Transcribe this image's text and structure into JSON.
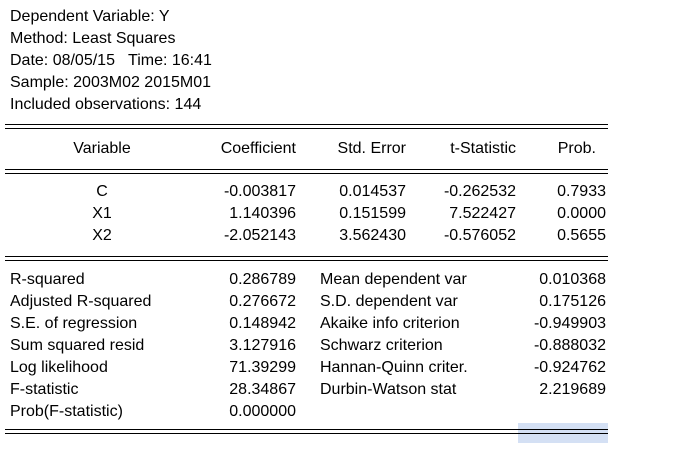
{
  "header": {
    "dependent": "Dependent Variable: Y",
    "method": "Method: Least Squares",
    "datetime": "Date: 08/05/15   Time: 16:41",
    "sample": "Sample: 2003M02 2015M01",
    "observations": "Included observations: 144"
  },
  "columns": {
    "variable": "Variable",
    "coefficient": "Coefficient",
    "std_error": "Std. Error",
    "t_statistic": "t-Statistic",
    "prob": "Prob."
  },
  "coefficients": [
    {
      "variable": "C",
      "coefficient": "-0.003817",
      "std_error": "0.014537",
      "t_statistic": "-0.262532",
      "prob": "0.7933"
    },
    {
      "variable": "X1",
      "coefficient": "1.140396",
      "std_error": "0.151599",
      "t_statistic": "7.522427",
      "prob": "0.0000"
    },
    {
      "variable": "X2",
      "coefficient": "-2.052143",
      "std_error": "3.562430",
      "t_statistic": "-0.576052",
      "prob": "0.5655"
    }
  ],
  "stats_left": [
    {
      "label": "R-squared",
      "value": "0.286789"
    },
    {
      "label": "Adjusted R-squared",
      "value": "0.276672"
    },
    {
      "label": "S.E. of regression",
      "value": "0.148942"
    },
    {
      "label": "Sum squared resid",
      "value": "3.127916"
    },
    {
      "label": "Log likelihood",
      "value": "71.39299"
    },
    {
      "label": "F-statistic",
      "value": "28.34867"
    },
    {
      "label": "Prob(F-statistic)",
      "value": "0.000000"
    }
  ],
  "stats_right": [
    {
      "label": "Mean dependent var",
      "value": "0.010368"
    },
    {
      "label": "S.D. dependent var",
      "value": "0.175126"
    },
    {
      "label": "Akaike info criterion",
      "value": "-0.949903"
    },
    {
      "label": "Schwarz criterion",
      "value": "-0.888032"
    },
    {
      "label": "Hannan-Quinn criter.",
      "value": "-0.924762"
    },
    {
      "label": "Durbin-Watson stat",
      "value": "2.219689"
    }
  ],
  "colors": {
    "text": "#000000",
    "background": "#ffffff",
    "selection": "#d4e0f4"
  }
}
